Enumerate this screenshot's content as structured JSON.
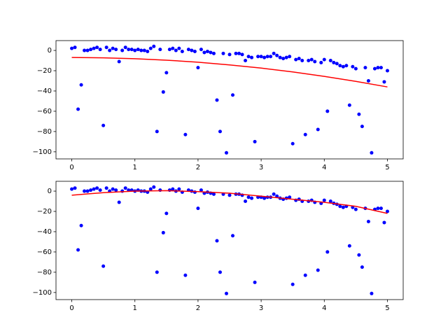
{
  "chart_data": [
    {
      "type": "scatter",
      "xlim": [
        -0.25,
        5.25
      ],
      "ylim": [
        -107,
        9.7
      ],
      "xticks": [
        0,
        1,
        2,
        3,
        4,
        5
      ],
      "yticks": [
        0,
        {
          "value": -20,
          "label": "−20"
        },
        {
          "value": -40,
          "label": "−40"
        },
        {
          "value": -60,
          "label": "−60"
        },
        {
          "value": -80,
          "label": "−80"
        },
        {
          "value": -100,
          "label": "−100"
        }
      ],
      "series": [
        {
          "type": "scatter",
          "color": "#0000ff",
          "x": [
            0,
            0.05,
            0.1,
            0.15,
            0.2,
            0.25,
            0.3,
            0.35,
            0.4,
            0.45,
            0.5,
            0.55,
            0.6,
            0.65,
            0.7,
            0.75,
            0.8,
            0.85,
            0.9,
            0.95,
            1,
            1.05,
            1.1,
            1.15,
            1.2,
            1.25,
            1.3,
            1.35,
            1.4,
            1.45,
            1.5,
            1.55,
            1.6,
            1.65,
            1.7,
            1.75,
            1.8,
            1.85,
            1.9,
            1.95,
            2,
            2.05,
            2.1,
            2.15,
            2.2,
            2.25,
            2.3,
            2.35,
            2.4,
            2.45,
            2.5,
            2.55,
            2.6,
            2.65,
            2.7,
            2.75,
            2.8,
            2.85,
            2.9,
            2.95,
            3,
            3.05,
            3.1,
            3.15,
            3.2,
            3.25,
            3.3,
            3.35,
            3.4,
            3.45,
            3.5,
            3.55,
            3.6,
            3.65,
            3.7,
            3.75,
            3.8,
            3.85,
            3.9,
            3.95,
            4,
            4.05,
            4.1,
            4.15,
            4.2,
            4.25,
            4.3,
            4.35,
            4.4,
            4.45,
            4.5,
            4.55,
            4.6,
            4.65,
            4.7,
            4.75,
            4.8,
            4.85,
            4.9,
            4.95,
            5
          ],
          "values": [
            2,
            3,
            -58,
            -34,
            0,
            0,
            1,
            2,
            3,
            1,
            -74,
            3,
            0,
            2,
            1,
            -11,
            0,
            3,
            1,
            1,
            0,
            1,
            0,
            0,
            -1,
            2,
            4,
            -80,
            1,
            -41,
            -22,
            1,
            2,
            0,
            2,
            -1,
            -83,
            1,
            0,
            -1,
            -17,
            1,
            -2,
            -1,
            -2,
            -3,
            -49,
            -80,
            -3,
            -101,
            -4,
            -44,
            -3,
            -3,
            -4,
            -10,
            -6,
            -7,
            -90,
            -6,
            -6,
            -7,
            -6,
            -6,
            -3,
            -5,
            -7,
            -8,
            -7,
            -6,
            -92,
            -9,
            -8,
            -10,
            -83,
            -10,
            -9,
            -11,
            -78,
            -12,
            -9,
            -60,
            -10,
            -12,
            -13,
            -15,
            -16,
            -15,
            -54,
            -16,
            -18,
            -63,
            -75,
            -17,
            -30,
            -101,
            -18,
            -17,
            -17,
            -31,
            -20
          ]
        },
        {
          "type": "line",
          "color": "#ff0000",
          "x": [
            0,
            0.5,
            1,
            1.5,
            2,
            2.5,
            3,
            3.5,
            4,
            4.5,
            5
          ],
          "values": [
            -7,
            -7.3,
            -8.2,
            -9.6,
            -11.6,
            -14.3,
            -17.4,
            -21.2,
            -25.6,
            -30.5,
            -36
          ]
        }
      ]
    },
    {
      "type": "scatter",
      "xlim": [
        -0.25,
        5.25
      ],
      "ylim": [
        -107,
        9.7
      ],
      "xticks": [
        0,
        1,
        2,
        3,
        4,
        5
      ],
      "yticks": [
        0,
        {
          "value": -20,
          "label": "−20"
        },
        {
          "value": -40,
          "label": "−40"
        },
        {
          "value": -60,
          "label": "−60"
        },
        {
          "value": -80,
          "label": "−80"
        },
        {
          "value": -100,
          "label": "−100"
        }
      ],
      "series": [
        {
          "type": "scatter",
          "color": "#0000ff",
          "x": [
            0,
            0.05,
            0.1,
            0.15,
            0.2,
            0.25,
            0.3,
            0.35,
            0.4,
            0.45,
            0.5,
            0.55,
            0.6,
            0.65,
            0.7,
            0.75,
            0.8,
            0.85,
            0.9,
            0.95,
            1,
            1.05,
            1.1,
            1.15,
            1.2,
            1.25,
            1.3,
            1.35,
            1.4,
            1.45,
            1.5,
            1.55,
            1.6,
            1.65,
            1.7,
            1.75,
            1.8,
            1.85,
            1.9,
            1.95,
            2,
            2.05,
            2.1,
            2.15,
            2.2,
            2.25,
            2.3,
            2.35,
            2.4,
            2.45,
            2.5,
            2.55,
            2.6,
            2.65,
            2.7,
            2.75,
            2.8,
            2.85,
            2.9,
            2.95,
            3,
            3.05,
            3.1,
            3.15,
            3.2,
            3.25,
            3.3,
            3.35,
            3.4,
            3.45,
            3.5,
            3.55,
            3.6,
            3.65,
            3.7,
            3.75,
            3.8,
            3.85,
            3.9,
            3.95,
            4,
            4.05,
            4.1,
            4.15,
            4.2,
            4.25,
            4.3,
            4.35,
            4.4,
            4.45,
            4.5,
            4.55,
            4.6,
            4.65,
            4.7,
            4.75,
            4.8,
            4.85,
            4.9,
            4.95,
            5
          ],
          "values": [
            2,
            3,
            -58,
            -34,
            0,
            0,
            1,
            2,
            3,
            1,
            -74,
            3,
            0,
            2,
            1,
            -11,
            0,
            3,
            1,
            1,
            0,
            1,
            0,
            0,
            -1,
            2,
            4,
            -80,
            1,
            -41,
            -22,
            1,
            2,
            0,
            2,
            -1,
            -83,
            1,
            0,
            -1,
            -17,
            1,
            -2,
            -1,
            -2,
            -3,
            -49,
            -80,
            -3,
            -101,
            -4,
            -44,
            -3,
            -3,
            -4,
            -10,
            -6,
            -7,
            -90,
            -6,
            -6,
            -7,
            -6,
            -6,
            -3,
            -5,
            -7,
            -8,
            -7,
            -6,
            -92,
            -9,
            -8,
            -10,
            -83,
            -10,
            -9,
            -11,
            -78,
            -12,
            -9,
            -60,
            -10,
            -12,
            -13,
            -15,
            -16,
            -15,
            -54,
            -16,
            -18,
            -63,
            -75,
            -17,
            -30,
            -101,
            -18,
            -17,
            -17,
            -31,
            -20
          ]
        },
        {
          "type": "line",
          "color": "#ff0000",
          "x": [
            0,
            0.5,
            1,
            1.5,
            2,
            2.5,
            3,
            3.5,
            4,
            4.5,
            5
          ],
          "values": [
            -4,
            -1.5,
            0,
            0.5,
            -0.5,
            -2,
            -5,
            -8,
            -11,
            -15,
            -22
          ]
        }
      ]
    }
  ]
}
